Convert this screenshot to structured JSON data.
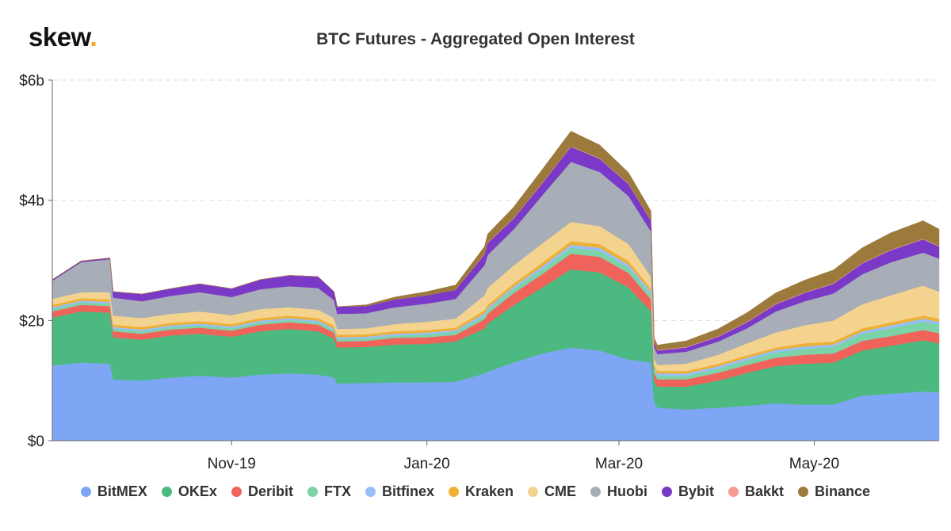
{
  "logo": {
    "text": "skew",
    "dot": "."
  },
  "chart_data": {
    "type": "area",
    "title": "BTC Futures - Aggregated Open Interest",
    "stacked": true,
    "y_ticks": [
      "$0",
      "$2b",
      "$4b",
      "$6b"
    ],
    "y_tick_values": [
      0,
      2,
      4,
      6
    ],
    "ylim": [
      0,
      6
    ],
    "x_ticks": [
      "Nov-19",
      "Jan-20",
      "Mar-20",
      "May-20"
    ],
    "x_tick_values": [
      "2019-11-01",
      "2020-01-01",
      "2020-03-01",
      "2020-05-01"
    ],
    "x_dates": [
      "2019-09-06",
      "2019-09-15",
      "2019-09-24",
      "2019-09-25",
      "2019-10-04",
      "2019-10-13",
      "2019-10-22",
      "2019-11-01",
      "2019-11-10",
      "2019-11-19",
      "2019-11-28",
      "2019-12-03",
      "2019-12-04",
      "2019-12-13",
      "2019-12-22",
      "2020-01-01",
      "2020-01-10",
      "2020-01-19",
      "2020-01-20",
      "2020-01-28",
      "2020-02-06",
      "2020-02-15",
      "2020-02-24",
      "2020-03-04",
      "2020-03-11",
      "2020-03-12",
      "2020-03-13",
      "2020-03-22",
      "2020-04-01",
      "2020-04-10",
      "2020-04-19",
      "2020-04-28",
      "2020-05-07",
      "2020-05-16",
      "2020-05-25",
      "2020-06-04",
      "2020-06-09"
    ],
    "grid": true,
    "legend_position": "bottom",
    "series": [
      {
        "name": "BitMEX",
        "color": "#7ea6f4",
        "values": [
          1.25,
          1.3,
          1.28,
          1.02,
          1.0,
          1.05,
          1.08,
          1.05,
          1.1,
          1.12,
          1.1,
          1.05,
          0.95,
          0.96,
          0.97,
          0.97,
          0.98,
          1.12,
          1.15,
          1.3,
          1.45,
          1.55,
          1.5,
          1.35,
          1.3,
          0.65,
          0.55,
          0.52,
          0.55,
          0.58,
          0.62,
          0.6,
          0.6,
          0.75,
          0.78,
          0.82,
          0.8
        ]
      },
      {
        "name": "OKEx",
        "color": "#4cba80",
        "values": [
          0.8,
          0.85,
          0.85,
          0.7,
          0.68,
          0.7,
          0.7,
          0.68,
          0.72,
          0.74,
          0.72,
          0.65,
          0.6,
          0.6,
          0.63,
          0.64,
          0.67,
          0.75,
          0.8,
          0.95,
          1.1,
          1.3,
          1.3,
          1.2,
          0.85,
          0.35,
          0.35,
          0.38,
          0.45,
          0.55,
          0.62,
          0.68,
          0.7,
          0.75,
          0.8,
          0.85,
          0.82
        ]
      },
      {
        "name": "Deribit",
        "color": "#f0635a",
        "values": [
          0.1,
          0.11,
          0.11,
          0.1,
          0.1,
          0.1,
          0.1,
          0.1,
          0.11,
          0.11,
          0.11,
          0.1,
          0.1,
          0.1,
          0.11,
          0.11,
          0.11,
          0.15,
          0.16,
          0.2,
          0.22,
          0.26,
          0.26,
          0.24,
          0.2,
          0.12,
          0.12,
          0.12,
          0.13,
          0.13,
          0.14,
          0.15,
          0.15,
          0.16,
          0.16,
          0.17,
          0.17
        ]
      },
      {
        "name": "FTX",
        "color": "#7dd3a8",
        "values": [
          0.04,
          0.04,
          0.04,
          0.04,
          0.04,
          0.04,
          0.04,
          0.04,
          0.04,
          0.04,
          0.04,
          0.04,
          0.04,
          0.04,
          0.04,
          0.05,
          0.05,
          0.06,
          0.06,
          0.07,
          0.08,
          0.1,
          0.1,
          0.09,
          0.08,
          0.06,
          0.06,
          0.06,
          0.07,
          0.08,
          0.09,
          0.1,
          0.11,
          0.12,
          0.13,
          0.14,
          0.14
        ]
      },
      {
        "name": "Bitfinex",
        "color": "#98bff5",
        "values": [
          0.03,
          0.03,
          0.03,
          0.03,
          0.03,
          0.03,
          0.03,
          0.03,
          0.03,
          0.03,
          0.03,
          0.03,
          0.03,
          0.03,
          0.03,
          0.03,
          0.03,
          0.04,
          0.04,
          0.04,
          0.05,
          0.05,
          0.05,
          0.05,
          0.05,
          0.04,
          0.04,
          0.04,
          0.04,
          0.04,
          0.04,
          0.04,
          0.04,
          0.04,
          0.05,
          0.05,
          0.05
        ]
      },
      {
        "name": "Kraken",
        "color": "#efb034",
        "values": [
          0.04,
          0.04,
          0.04,
          0.04,
          0.04,
          0.04,
          0.04,
          0.04,
          0.04,
          0.04,
          0.04,
          0.04,
          0.04,
          0.04,
          0.04,
          0.04,
          0.04,
          0.05,
          0.05,
          0.05,
          0.06,
          0.06,
          0.06,
          0.06,
          0.05,
          0.04,
          0.04,
          0.04,
          0.04,
          0.04,
          0.04,
          0.05,
          0.05,
          0.05,
          0.05,
          0.05,
          0.05
        ]
      },
      {
        "name": "CME",
        "color": "#f4d38f",
        "values": [
          0.1,
          0.1,
          0.12,
          0.15,
          0.15,
          0.15,
          0.16,
          0.15,
          0.15,
          0.14,
          0.14,
          0.13,
          0.1,
          0.1,
          0.12,
          0.14,
          0.15,
          0.25,
          0.28,
          0.3,
          0.32,
          0.32,
          0.3,
          0.28,
          0.2,
          0.1,
          0.1,
          0.12,
          0.15,
          0.2,
          0.25,
          0.3,
          0.35,
          0.4,
          0.45,
          0.5,
          0.45
        ]
      },
      {
        "name": "Huobi",
        "color": "#a7aeb7",
        "values": [
          0.3,
          0.5,
          0.55,
          0.3,
          0.28,
          0.3,
          0.32,
          0.3,
          0.33,
          0.35,
          0.36,
          0.3,
          0.25,
          0.25,
          0.28,
          0.3,
          0.33,
          0.5,
          0.55,
          0.6,
          0.8,
          1.0,
          0.9,
          0.8,
          0.75,
          0.2,
          0.18,
          0.2,
          0.22,
          0.25,
          0.35,
          0.4,
          0.45,
          0.5,
          0.55,
          0.55,
          0.55
        ]
      },
      {
        "name": "Bybit",
        "color": "#7b39c8",
        "values": [
          0.02,
          0.02,
          0.02,
          0.1,
          0.12,
          0.12,
          0.14,
          0.14,
          0.16,
          0.18,
          0.19,
          0.14,
          0.12,
          0.12,
          0.13,
          0.14,
          0.15,
          0.18,
          0.2,
          0.18,
          0.2,
          0.25,
          0.22,
          0.2,
          0.18,
          0.06,
          0.06,
          0.07,
          0.08,
          0.1,
          0.12,
          0.14,
          0.16,
          0.18,
          0.2,
          0.22,
          0.2
        ]
      },
      {
        "name": "Bakkt",
        "color": "#f79a92",
        "values": [
          0.0,
          0.0,
          0.0,
          0.0,
          0.0,
          0.0,
          0.0,
          0.0,
          0.0,
          0.0,
          0.0,
          0.0,
          0.0,
          0.0,
          0.0,
          0.0,
          0.0,
          0.01,
          0.01,
          0.01,
          0.01,
          0.01,
          0.01,
          0.01,
          0.01,
          0.01,
          0.01,
          0.01,
          0.01,
          0.01,
          0.01,
          0.01,
          0.01,
          0.01,
          0.01,
          0.01,
          0.01
        ]
      },
      {
        "name": "Binance",
        "color": "#9c7a3c",
        "values": [
          0.0,
          0.0,
          0.0,
          0.0,
          0.0,
          0.0,
          0.0,
          0.0,
          0.0,
          0.0,
          0.0,
          0.0,
          0.0,
          0.02,
          0.04,
          0.06,
          0.08,
          0.12,
          0.14,
          0.18,
          0.22,
          0.25,
          0.22,
          0.18,
          0.15,
          0.08,
          0.08,
          0.1,
          0.12,
          0.15,
          0.18,
          0.2,
          0.22,
          0.25,
          0.28,
          0.3,
          0.28
        ]
      }
    ]
  }
}
